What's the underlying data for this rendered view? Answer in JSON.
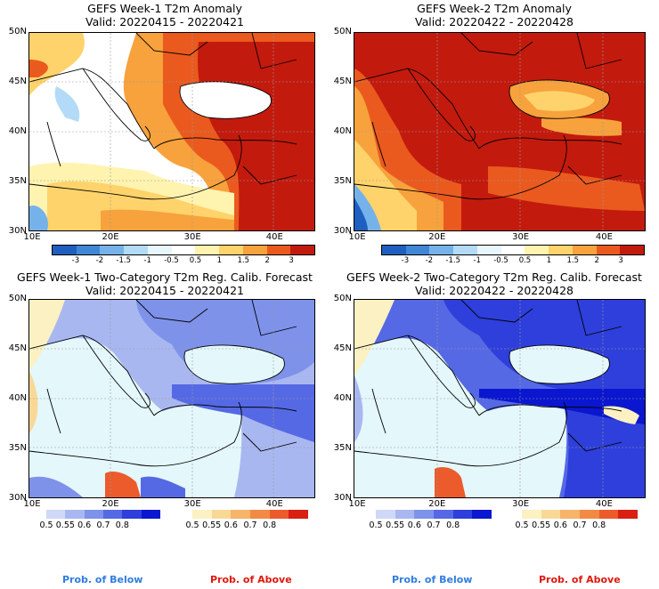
{
  "panels": [
    {
      "title1": "GEFS Week-1 T2m Anomaly",
      "title2": "Valid: 20220415 - 20220421"
    },
    {
      "title1": "GEFS Week-2 T2m Anomaly",
      "title2": "Valid: 20220422 - 20220428"
    },
    {
      "title1": "GEFS Week-1 Two-Category T2m Reg. Calib. Forecast",
      "title2": "Valid: 20220415 - 20220421"
    },
    {
      "title1": "GEFS Week-2 Two-Category T2m Reg. Calib. Forecast",
      "title2": "Valid: 20220422 - 20220428"
    }
  ],
  "lat_ticks": [
    "50N",
    "45N",
    "40N",
    "35N",
    "30N"
  ],
  "lon_ticks": [
    "10E",
    "20E",
    "30E",
    "40E"
  ],
  "anom_colorbar": {
    "labels": [
      "-3",
      "-2",
      "-1.5",
      "-1",
      "-0.5",
      "0.5",
      "1",
      "1.5",
      "2",
      "3"
    ],
    "colors": [
      "#1f5fbf",
      "#3f86d6",
      "#76b2ea",
      "#b3dbf7",
      "#e8f5fd",
      "#ffffff",
      "#fff3b0",
      "#ffd36b",
      "#f7a23c",
      "#ea5a1e",
      "#c31a0e"
    ]
  },
  "prob_legend": {
    "below_labels": [
      "0.5",
      "0.55",
      "0.6",
      "0.7",
      "0.8"
    ],
    "above_labels": [
      "0.5",
      "0.55",
      "0.6",
      "0.7",
      "0.8"
    ],
    "below_colors": [
      "#cfd8f7",
      "#a9b7f1",
      "#7e92ea",
      "#5669e4",
      "#2e3fdb",
      "#0a16cf"
    ],
    "above_colors": [
      "#fbf1c2",
      "#f9d896",
      "#f6b46a",
      "#f28a46",
      "#ec5b2b",
      "#d91e12"
    ],
    "below_text": "Prob. of Below",
    "above_text": "Prob. of Above",
    "below_color": "#2f7de0",
    "above_color": "#e0170c"
  }
}
